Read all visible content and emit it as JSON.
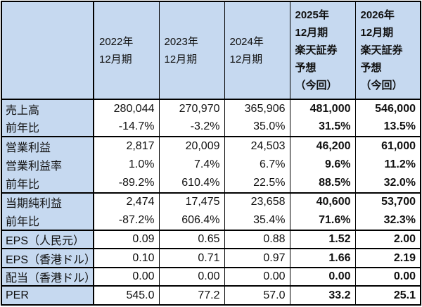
{
  "colors": {
    "header_bg": "#c6d9f0",
    "border": "#000000",
    "text": "#111111"
  },
  "table": {
    "header": {
      "corner": "",
      "columns": [
        {
          "lines": [
            "2022年",
            "12月期"
          ]
        },
        {
          "lines": [
            "2023年",
            "12月期"
          ]
        },
        {
          "lines": [
            "2024年",
            "12月期"
          ]
        },
        {
          "lines": [
            "2025年",
            "12月期",
            "楽天証券",
            "予想",
            "（今回）"
          ]
        },
        {
          "lines": [
            "2026年",
            "12月期",
            "楽天証券",
            "予想",
            "（今回）"
          ]
        }
      ]
    },
    "rows": [
      {
        "label": "売上高",
        "values": [
          "280,044",
          "270,970",
          "365,906",
          "481,000",
          "546,000"
        ]
      },
      {
        "label": "前年比",
        "values": [
          "-14.7%",
          "-3.2%",
          "35.0%",
          "31.5%",
          "13.5%"
        ]
      },
      {
        "label": "営業利益",
        "values": [
          "2,817",
          "20,009",
          "24,503",
          "46,200",
          "61,000"
        ]
      },
      {
        "label": "営業利益率",
        "values": [
          "1.0%",
          "7.4%",
          "6.7%",
          "9.6%",
          "11.2%"
        ]
      },
      {
        "label": "前年比",
        "values": [
          "-89.2%",
          "610.4%",
          "22.5%",
          "88.5%",
          "32.0%"
        ]
      },
      {
        "label": "当期純利益",
        "values": [
          "2,474",
          "17,475",
          "23,658",
          "40,600",
          "53,700"
        ]
      },
      {
        "label": "前年比",
        "values": [
          "-87.2%",
          "606.4%",
          "35.4%",
          "71.6%",
          "32.3%"
        ]
      },
      {
        "label": "EPS（人民元）",
        "values": [
          "0.09",
          "0.65",
          "0.88",
          "1.52",
          "2.00"
        ]
      },
      {
        "label": "EPS（香港ドル）",
        "values": [
          "0.10",
          "0.71",
          "0.97",
          "1.66",
          "2.19"
        ]
      },
      {
        "label": "配当（香港ドル）",
        "values": [
          "0.00",
          "0.00",
          "0.00",
          "0.00",
          "0.00"
        ]
      },
      {
        "label": "PER",
        "values": [
          "545.0",
          "77.2",
          "57.0",
          "33.2",
          "25.1"
        ]
      }
    ]
  },
  "chart_data": {
    "type": "table",
    "columns": [
      "",
      "2022年12月期",
      "2023年12月期",
      "2024年12月期",
      "2025年12月期 楽天証券予想（今回）",
      "2026年12月期 楽天証券予想（今回）"
    ],
    "rows": [
      [
        "売上高",
        280044,
        270970,
        365906,
        481000,
        546000
      ],
      [
        "前年比",
        "-14.7%",
        "-3.2%",
        "35.0%",
        "31.5%",
        "13.5%"
      ],
      [
        "営業利益",
        2817,
        20009,
        24503,
        46200,
        61000
      ],
      [
        "営業利益率",
        "1.0%",
        "7.4%",
        "6.7%",
        "9.6%",
        "11.2%"
      ],
      [
        "前年比",
        "-89.2%",
        "610.4%",
        "22.5%",
        "88.5%",
        "32.0%"
      ],
      [
        "当期純利益",
        2474,
        17475,
        23658,
        40600,
        53700
      ],
      [
        "前年比",
        "-87.2%",
        "606.4%",
        "35.4%",
        "71.6%",
        "32.3%"
      ],
      [
        "EPS（人民元）",
        0.09,
        0.65,
        0.88,
        1.52,
        2.0
      ],
      [
        "EPS（香港ドル）",
        0.1,
        0.71,
        0.97,
        1.66,
        2.19
      ],
      [
        "配当（香港ドル）",
        0.0,
        0.0,
        0.0,
        0.0,
        0.0
      ],
      [
        "PER",
        545.0,
        77.2,
        57.0,
        33.2,
        25.1
      ]
    ],
    "notes": "Forecast columns (2025, 2026) rendered bold; header and row-label cells shaded light blue"
  }
}
